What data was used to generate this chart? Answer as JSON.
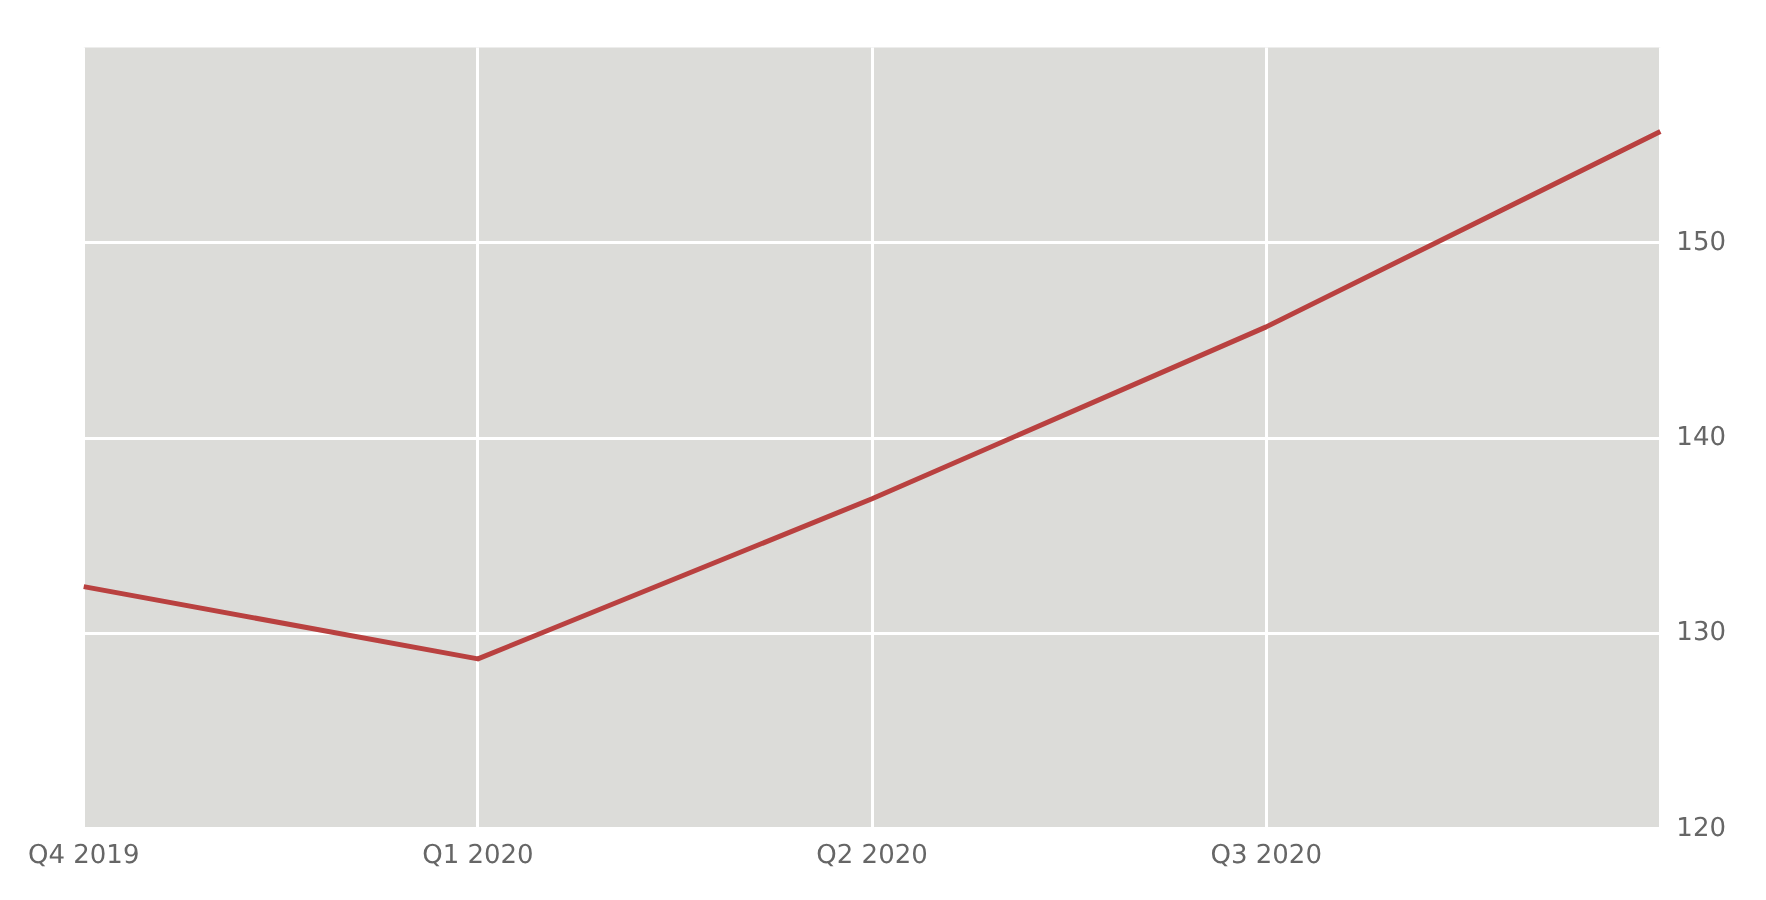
{
  "chart_data": {
    "type": "line",
    "categories": [
      "Q4 2019",
      "Q1 2020",
      "Q2 2020",
      "Q3 2020",
      null
    ],
    "series": [
      {
        "color": "#b94140",
        "values": [
          132.4,
          128.7,
          136.9,
          145.7,
          155.7
        ]
      }
    ],
    "ylim": [
      120,
      160
    ],
    "yticks": [
      120,
      130,
      140,
      150
    ],
    "grid": true,
    "legend": false,
    "marker": "none"
  }
}
